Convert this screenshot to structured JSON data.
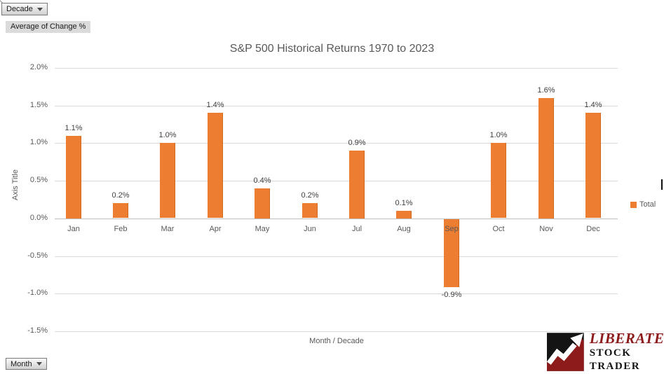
{
  "pivot_controls": {
    "decade_button": "Decade",
    "value_field_label": "Average of Change %",
    "month_button": "Month"
  },
  "chart_data": {
    "type": "bar",
    "title": "S&P 500 Historical Returns 1970 to 2023",
    "categories": [
      "Jan",
      "Feb",
      "Mar",
      "Apr",
      "May",
      "Jun",
      "Jul",
      "Aug",
      "Sep",
      "Oct",
      "Nov",
      "Dec"
    ],
    "values": [
      1.1,
      0.2,
      1.0,
      1.4,
      0.4,
      0.2,
      0.9,
      0.1,
      -0.9,
      1.0,
      1.6,
      1.4
    ],
    "data_labels": [
      "1.1%",
      "0.2%",
      "1.0%",
      "1.4%",
      "0.4%",
      "0.2%",
      "0.9%",
      "0.1%",
      "-0.9%",
      "1.0%",
      "1.6%",
      "1.4%"
    ],
    "xlabel": "Month / Decade",
    "ylabel": "Axis Title",
    "ylim": [
      -1.5,
      2.0
    ],
    "yticks": [
      2.0,
      1.5,
      1.0,
      0.5,
      0.0,
      -0.5,
      -1.0,
      -1.5
    ],
    "ytick_labels": [
      "2.0%",
      "1.5%",
      "1.0%",
      "0.5%",
      "0.0%",
      "-0.5%",
      "-1.0%",
      "-1.5%"
    ],
    "series_name": "Total",
    "legend": [
      "Total"
    ],
    "legend_position": "right",
    "grid": true,
    "bar_color": "#ED7D31"
  },
  "logo": {
    "line1": "LIBERATED",
    "line2": "STOCK TRADER"
  },
  "colors": {
    "bar": "#ED7D31",
    "bar_edge": "#D1681F",
    "gridline": "#D9D9D9",
    "axis_line": "#BFBFBF",
    "muted_text": "#595959",
    "data_label_text": "#404040",
    "logo_red": "#8E1B1B"
  }
}
